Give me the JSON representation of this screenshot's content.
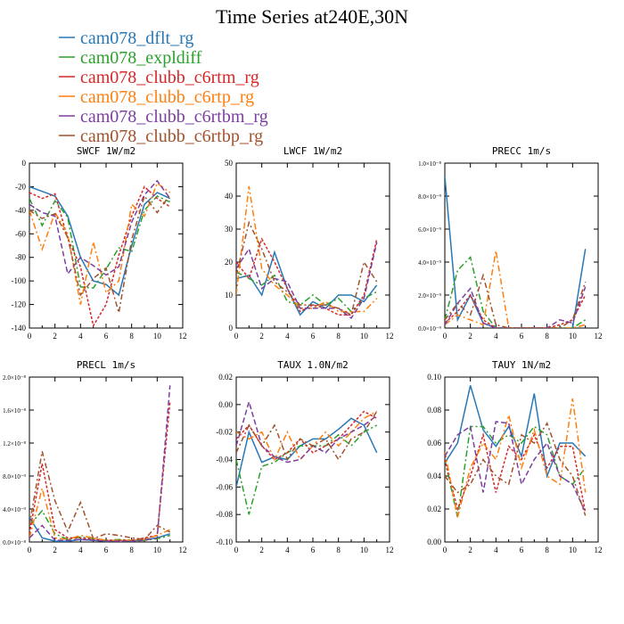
{
  "figure": {
    "title": "Time Series at240E,30N",
    "legend": [
      {
        "name": "cam078_dflt_rg",
        "color": "#2878b5"
      },
      {
        "name": "cam078_expldiff",
        "color": "#2ca02c"
      },
      {
        "name": "cam078_clubb_c6rtm_rg",
        "color": "#d62728"
      },
      {
        "name": "cam078_clubb_c6rtp_rg",
        "color": "#ff7f0e"
      },
      {
        "name": "cam078_clubb_c6rtbm_rg",
        "color": "#7b3fa0"
      },
      {
        "name": "cam078_clubb_c6rtbp_rg",
        "color": "#a0522d"
      }
    ]
  },
  "chart_data": [
    {
      "type": "line",
      "title": "SWCF   1W/m2",
      "x": [
        0,
        1,
        2,
        3,
        4,
        5,
        6,
        7,
        8,
        9,
        10,
        11
      ],
      "xlim": [
        0,
        12
      ],
      "xticks": [
        0,
        2,
        4,
        6,
        8,
        10,
        12
      ],
      "xtick_labels": [
        "0",
        "2",
        "4",
        "6",
        "8",
        "10",
        "12"
      ],
      "ylim": [
        -140,
        0
      ],
      "yticks": [
        -140,
        -120,
        -100,
        -80,
        -60,
        -40,
        -20,
        0
      ],
      "ytick_labels": [
        "-140",
        "-120",
        "-100",
        "-80",
        "-60",
        "-40",
        "-20",
        "0"
      ],
      "series": [
        {
          "name": "cam078_dflt_rg",
          "values": [
            -20,
            -24,
            -28,
            -45,
            -80,
            -100,
            -103,
            -112,
            -70,
            -35,
            -25,
            -30
          ]
        },
        {
          "name": "cam078_expldiff",
          "values": [
            -30,
            -53,
            -32,
            -46,
            -105,
            -106,
            -90,
            -72,
            -75,
            -40,
            -28,
            -33
          ]
        },
        {
          "name": "cam078_clubb_c6rtm_rg",
          "values": [
            -25,
            -30,
            -26,
            -64,
            -88,
            -138,
            -120,
            -78,
            -45,
            -20,
            -30,
            -37
          ]
        },
        {
          "name": "cam078_clubb_c6rtp_rg",
          "values": [
            -40,
            -73,
            -42,
            -60,
            -120,
            -67,
            -110,
            -100,
            -35,
            -45,
            -17,
            -25
          ]
        },
        {
          "name": "cam078_clubb_c6rtbm_rg",
          "values": [
            -35,
            -42,
            -45,
            -94,
            -80,
            -87,
            -95,
            -88,
            -50,
            -27,
            -15,
            -30
          ]
        },
        {
          "name": "cam078_clubb_c6rtbp_rg",
          "values": [
            -40,
            -47,
            -43,
            -63,
            -112,
            -98,
            -89,
            -127,
            -65,
            -28,
            -42,
            -27
          ]
        }
      ]
    },
    {
      "type": "line",
      "title": "LWCF   1W/m2",
      "x": [
        0,
        1,
        2,
        3,
        4,
        5,
        6,
        7,
        8,
        9,
        10,
        11
      ],
      "xlim": [
        0,
        12
      ],
      "xticks": [
        0,
        2,
        4,
        6,
        8,
        10,
        12
      ],
      "xtick_labels": [
        "0",
        "2",
        "4",
        "6",
        "8",
        "10",
        "12"
      ],
      "ylim": [
        0,
        50
      ],
      "yticks": [
        0,
        10,
        20,
        30,
        40,
        50
      ],
      "ytick_labels": [
        "0",
        "10",
        "20",
        "30",
        "40",
        "50"
      ],
      "series": [
        {
          "name": "cam078_dflt_rg",
          "values": [
            15,
            16,
            10,
            23,
            12,
            4,
            8,
            6,
            10,
            10,
            8,
            13
          ]
        },
        {
          "name": "cam078_expldiff",
          "values": [
            17,
            15,
            13,
            16,
            8,
            7,
            10,
            7,
            9,
            5,
            9,
            11
          ]
        },
        {
          "name": "cam078_clubb_c6rtm_rg",
          "values": [
            20,
            15,
            27,
            20,
            12,
            5,
            7,
            6,
            4,
            4,
            10,
            27
          ]
        },
        {
          "name": "cam078_clubb_c6rtp_rg",
          "values": [
            10,
            43,
            18,
            13,
            10,
            6,
            6,
            8,
            5,
            5,
            5,
            9
          ]
        },
        {
          "name": "cam078_clubb_c6rtbm_rg",
          "values": [
            18,
            24,
            12,
            15,
            14,
            6,
            6,
            6,
            6,
            3,
            9,
            26
          ]
        },
        {
          "name": "cam078_clubb_c6rtbp_rg",
          "values": [
            16,
            32,
            24,
            14,
            11,
            7,
            7,
            7,
            6,
            4,
            20,
            14
          ]
        }
      ]
    },
    {
      "type": "line",
      "title": "PRECC   1m/s",
      "x": [
        0,
        1,
        2,
        3,
        4,
        5,
        6,
        7,
        8,
        9,
        10,
        11
      ],
      "xlim": [
        0,
        12
      ],
      "xticks": [
        0,
        2,
        4,
        6,
        8,
        10,
        12
      ],
      "xtick_labels": [
        "0",
        "2",
        "4",
        "6",
        "8",
        "10",
        "12"
      ],
      "ylim": [
        0,
        1e-08
      ],
      "yticks": [
        0,
        2e-09,
        4e-09,
        6e-09,
        8e-09,
        1e-08
      ],
      "ytick_labels": [
        "0.0×10⁻⁹",
        "2.0×10⁻⁹",
        "4.0×10⁻⁹",
        "6.0×10⁻⁹",
        "8.0×10⁻⁹",
        "1.0×10⁻⁸"
      ],
      "series": [
        {
          "name": "cam078_dflt_rg",
          "values": [
            9.2e-09,
            5e-10,
            2e-09,
            3e-10,
            0,
            0,
            0,
            0,
            0,
            0,
            0,
            4.8e-09
          ]
        },
        {
          "name": "cam078_expldiff",
          "values": [
            5e-10,
            3.5e-09,
            4.3e-09,
            1e-09,
            0,
            0,
            0,
            0,
            0,
            0,
            0,
            5e-10
          ]
        },
        {
          "name": "cam078_clubb_c6rtm_rg",
          "values": [
            3e-10,
            1e-09,
            2e-09,
            5e-10,
            0,
            0,
            0,
            0,
            0,
            2e-10,
            5e-10,
            2e-09
          ]
        },
        {
          "name": "cam078_clubb_c6rtp_rg",
          "values": [
            2e-10,
            8e-10,
            5e-10,
            2e-10,
            4.7e-09,
            0,
            0,
            0,
            0,
            0,
            0,
            2e-10
          ]
        },
        {
          "name": "cam078_clubb_c6rtbm_rg",
          "values": [
            2e-10,
            1.5e-09,
            2.4e-09,
            3e-10,
            0,
            0,
            0,
            0,
            0,
            5e-10,
            3e-10,
            2.5e-09
          ]
        },
        {
          "name": "cam078_clubb_c6rtbp_rg",
          "values": [
            5e-10,
            1.5e-09,
            8e-10,
            3.2e-09,
            2e-10,
            0,
            0,
            0,
            0,
            0,
            5e-10,
            2.8e-09
          ]
        }
      ]
    },
    {
      "type": "line",
      "title": "PRECL   1m/s",
      "x": [
        0,
        1,
        2,
        3,
        4,
        5,
        6,
        7,
        8,
        9,
        10,
        11
      ],
      "xlim": [
        0,
        12
      ],
      "xticks": [
        0,
        2,
        4,
        6,
        8,
        10,
        12
      ],
      "xtick_labels": [
        "0",
        "2",
        "4",
        "6",
        "8",
        "10",
        "12"
      ],
      "ylim": [
        0,
        2e-08
      ],
      "yticks": [
        0,
        4e-09,
        8e-09,
        1.2e-08,
        1.6e-08,
        2e-08
      ],
      "ytick_labels": [
        "0.0×10⁻⁸",
        "4.0×10⁻⁹",
        "8.0×10⁻⁹",
        "1.2×10⁻⁸",
        "1.6×10⁻⁸",
        "2.0×10⁻⁸"
      ],
      "series": [
        {
          "name": "cam078_dflt_rg",
          "values": [
            3e-09,
            5e-10,
            1e-10,
            1e-10,
            3e-10,
            2e-10,
            1e-10,
            2e-10,
            1e-10,
            3e-10,
            5e-10,
            1e-09
          ]
        },
        {
          "name": "cam078_expldiff",
          "values": [
            2e-09,
            3.8e-09,
            1e-09,
            3e-10,
            6e-10,
            4e-10,
            2e-10,
            3e-10,
            2e-10,
            2e-10,
            4e-10,
            8e-10
          ]
        },
        {
          "name": "cam078_clubb_c6rtm_rg",
          "values": [
            1e-09,
            9.5e-09,
            1.5e-09,
            5e-10,
            5e-10,
            3e-10,
            2e-10,
            2e-10,
            2e-10,
            5e-10,
            8e-10,
            1.7e-08
          ]
        },
        {
          "name": "cam078_clubb_c6rtp_rg",
          "values": [
            5e-10,
            6.5e-09,
            5e-10,
            3e-10,
            8e-10,
            5e-10,
            2e-10,
            2e-10,
            2e-10,
            3e-10,
            8e-10,
            1.5e-09
          ]
        },
        {
          "name": "cam078_clubb_c6rtbm_rg",
          "values": [
            5e-10,
            2e-09,
            2e-10,
            2e-10,
            3e-10,
            2e-10,
            1e-10,
            1e-10,
            1e-10,
            2e-10,
            5e-10,
            1.9e-08
          ]
        },
        {
          "name": "cam078_clubb_c6rtbp_rg",
          "values": [
            2e-09,
            1.1e-08,
            5e-09,
            1.3e-09,
            4.8e-09,
            4e-10,
            1e-09,
            8e-10,
            5e-10,
            3e-10,
            2e-09,
            1.2e-09
          ]
        }
      ]
    },
    {
      "type": "line",
      "title": "TAUX   1.0N/m2",
      "x": [
        0,
        1,
        2,
        3,
        4,
        5,
        6,
        7,
        8,
        9,
        10,
        11
      ],
      "xlim": [
        0,
        12
      ],
      "xticks": [
        0,
        2,
        4,
        6,
        8,
        10,
        12
      ],
      "xtick_labels": [
        "0",
        "2",
        "4",
        "6",
        "8",
        "10",
        "12"
      ],
      "ylim": [
        -0.1,
        0.02
      ],
      "yticks": [
        -0.1,
        -0.08,
        -0.06,
        -0.04,
        -0.02,
        0.0,
        0.02
      ],
      "ytick_labels": [
        "-0.10",
        "-0.08",
        "-0.06",
        "-0.04",
        "-0.02",
        "0.00",
        "0.02"
      ],
      "series": [
        {
          "name": "cam078_dflt_rg",
          "values": [
            -0.06,
            -0.02,
            -0.042,
            -0.038,
            -0.04,
            -0.03,
            -0.025,
            -0.025,
            -0.018,
            -0.01,
            -0.015,
            -0.035
          ]
        },
        {
          "name": "cam078_expldiff",
          "values": [
            -0.04,
            -0.08,
            -0.045,
            -0.042,
            -0.035,
            -0.03,
            -0.03,
            -0.03,
            -0.022,
            -0.03,
            -0.02,
            -0.015
          ]
        },
        {
          "name": "cam078_clubb_c6rtm_rg",
          "values": [
            -0.025,
            -0.015,
            -0.03,
            -0.04,
            -0.035,
            -0.025,
            -0.035,
            -0.03,
            -0.025,
            -0.015,
            -0.005,
            -0.01
          ]
        },
        {
          "name": "cam078_clubb_c6rtp_rg",
          "values": [
            -0.02,
            -0.025,
            -0.02,
            -0.04,
            -0.02,
            -0.04,
            -0.03,
            -0.02,
            -0.03,
            -0.02,
            -0.01,
            -0.005
          ]
        },
        {
          "name": "cam078_clubb_c6rtbm_rg",
          "values": [
            -0.03,
            0.002,
            -0.03,
            -0.038,
            -0.042,
            -0.04,
            -0.03,
            -0.035,
            -0.025,
            -0.02,
            -0.015,
            -0.008
          ]
        },
        {
          "name": "cam078_clubb_c6rtbp_rg",
          "values": [
            -0.035,
            -0.015,
            -0.03,
            -0.015,
            -0.04,
            -0.025,
            -0.03,
            -0.025,
            -0.04,
            -0.025,
            -0.02,
            -0.005
          ]
        }
      ]
    },
    {
      "type": "line",
      "title": "TAUY   1N/m2",
      "x": [
        0,
        1,
        2,
        3,
        4,
        5,
        6,
        7,
        8,
        9,
        10,
        11
      ],
      "xlim": [
        0,
        12
      ],
      "xticks": [
        0,
        2,
        4,
        6,
        8,
        10,
        12
      ],
      "xtick_labels": [
        "0",
        "2",
        "4",
        "6",
        "8",
        "10",
        "12"
      ],
      "ylim": [
        0,
        0.1
      ],
      "yticks": [
        0,
        0.02,
        0.04,
        0.06,
        0.08,
        0.1
      ],
      "ytick_labels": [
        "0.00",
        "0.02",
        "0.04",
        "0.06",
        "0.08",
        "0.10"
      ],
      "series": [
        {
          "name": "cam078_dflt_rg",
          "values": [
            0.048,
            0.06,
            0.095,
            0.068,
            0.058,
            0.07,
            0.052,
            0.09,
            0.04,
            0.06,
            0.06,
            0.052
          ]
        },
        {
          "name": "cam078_expldiff",
          "values": [
            0.05,
            0.015,
            0.07,
            0.07,
            0.06,
            0.065,
            0.06,
            0.07,
            0.065,
            0.04,
            0.035,
            0.045
          ]
        },
        {
          "name": "cam078_clubb_c6rtm_rg",
          "values": [
            0.05,
            0.02,
            0.04,
            0.065,
            0.03,
            0.058,
            0.05,
            0.065,
            0.045,
            0.058,
            0.058,
            0.018
          ]
        },
        {
          "name": "cam078_clubb_c6rtp_rg",
          "values": [
            0.055,
            0.015,
            0.045,
            0.06,
            0.05,
            0.077,
            0.045,
            0.068,
            0.04,
            0.035,
            0.087,
            0.03
          ]
        },
        {
          "name": "cam078_clubb_c6rtbm_rg",
          "values": [
            0.052,
            0.065,
            0.07,
            0.03,
            0.073,
            0.072,
            0.035,
            0.05,
            0.06,
            0.04,
            0.035,
            0.018
          ]
        },
        {
          "name": "cam078_clubb_c6rtbp_rg",
          "values": [
            0.04,
            0.03,
            0.035,
            0.05,
            0.04,
            0.035,
            0.065,
            0.06,
            0.072,
            0.05,
            0.04,
            0.016
          ]
        }
      ]
    }
  ]
}
